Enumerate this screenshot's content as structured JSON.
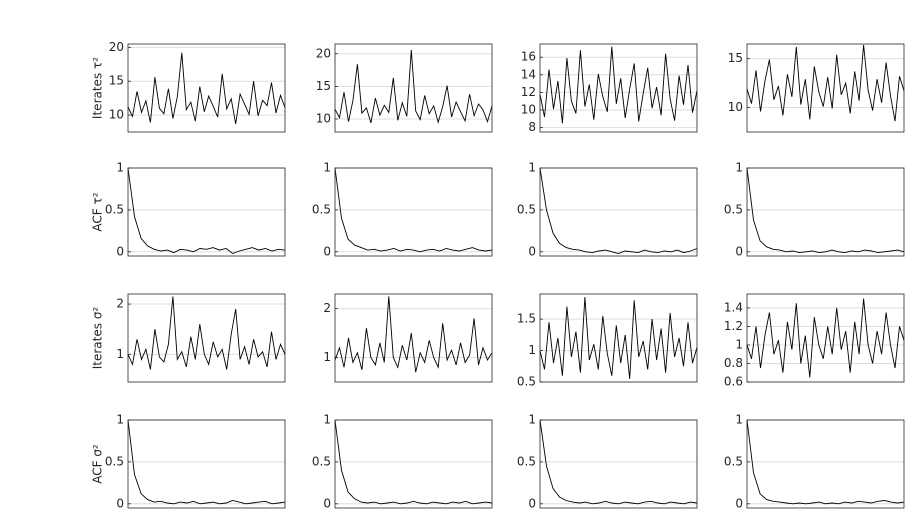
{
  "chart_data": [
    {
      "type": "line",
      "ylabel": "Iterates τ²",
      "color": "#000000",
      "grid": true,
      "ylim": [
        7.5,
        20.5
      ],
      "yticks": [
        10,
        15,
        20
      ],
      "values": [
        11.2,
        9.8,
        13.5,
        10.4,
        12.1,
        8.9,
        15.6,
        11.0,
        10.2,
        13.9,
        9.5,
        12.7,
        19.2,
        10.8,
        11.9,
        9.1,
        14.2,
        10.5,
        12.8,
        11.3,
        9.7,
        16.1,
        10.9,
        12.4,
        8.7,
        13.1,
        11.6,
        10.1,
        15.0,
        9.9,
        12.2,
        11.4,
        14.8,
        10.3,
        12.9,
        11.1
      ]
    },
    {
      "type": "line",
      "color": "#000000",
      "grid": true,
      "ylim": [
        8,
        21.5
      ],
      "yticks": [
        10,
        15,
        20
      ],
      "values": [
        11.5,
        10.2,
        14.1,
        9.6,
        12.8,
        18.4,
        10.9,
        11.7,
        9.4,
        13.2,
        10.6,
        12.1,
        11.0,
        16.3,
        9.8,
        12.5,
        10.4,
        20.6,
        11.2,
        9.9,
        13.6,
        10.8,
        12.0,
        9.5,
        11.9,
        15.1,
        10.3,
        12.6,
        11.1,
        9.7,
        13.8,
        10.5,
        12.3,
        11.4,
        9.6,
        12.0
      ]
    },
    {
      "type": "line",
      "color": "#000000",
      "grid": true,
      "ylim": [
        7.5,
        17.5
      ],
      "yticks": [
        8,
        10,
        12,
        14,
        16
      ],
      "values": [
        11.8,
        9.2,
        14.6,
        10.1,
        13.3,
        8.5,
        15.9,
        11.0,
        9.6,
        16.8,
        10.4,
        12.9,
        8.9,
        14.1,
        11.5,
        9.8,
        17.2,
        10.7,
        13.6,
        9.1,
        12.4,
        15.3,
        8.7,
        11.9,
        14.8,
        10.2,
        12.6,
        9.4,
        16.4,
        11.3,
        8.8,
        13.9,
        10.6,
        15.1,
        9.7,
        12.2
      ]
    },
    {
      "type": "line",
      "color": "#000000",
      "grid": true,
      "ylim": [
        7.5,
        16.5
      ],
      "yticks": [
        10,
        15
      ],
      "values": [
        11.9,
        10.4,
        13.8,
        9.6,
        12.7,
        14.9,
        10.8,
        12.2,
        9.2,
        13.4,
        11.1,
        16.2,
        10.3,
        12.9,
        8.8,
        14.2,
        11.6,
        10.1,
        13.1,
        9.9,
        15.4,
        11.3,
        12.5,
        9.4,
        13.7,
        10.7,
        16.4,
        11.8,
        9.7,
        12.9,
        10.5,
        14.6,
        11.2,
        8.6,
        13.2,
        11.7
      ]
    },
    {
      "type": "line",
      "ylabel": "ACF τ²",
      "color": "#000000",
      "grid": true,
      "ylim": [
        -0.05,
        1
      ],
      "yticks": [
        0,
        0.5,
        1
      ],
      "values": [
        1,
        0.42,
        0.16,
        0.07,
        0.03,
        0.01,
        0.02,
        -0.01,
        0.03,
        0.02,
        0.0,
        0.04,
        0.03,
        0.05,
        0.02,
        0.04,
        -0.02,
        0.01,
        0.03,
        0.05,
        0.02,
        0.04,
        0.01,
        0.03,
        0.02
      ]
    },
    {
      "type": "line",
      "color": "#000000",
      "grid": true,
      "ylim": [
        -0.05,
        1
      ],
      "yticks": [
        0,
        0.5,
        1
      ],
      "values": [
        1,
        0.4,
        0.15,
        0.08,
        0.05,
        0.02,
        0.03,
        0.01,
        0.02,
        0.04,
        0.01,
        0.03,
        0.02,
        0.0,
        0.02,
        0.03,
        0.01,
        0.04,
        0.02,
        0.01,
        0.03,
        0.05,
        0.02,
        0.01,
        0.02
      ]
    },
    {
      "type": "line",
      "color": "#000000",
      "grid": true,
      "ylim": [
        -0.05,
        1
      ],
      "yticks": [
        0,
        0.5,
        1
      ],
      "values": [
        1,
        0.5,
        0.22,
        0.1,
        0.05,
        0.03,
        0.02,
        0.0,
        -0.01,
        0.01,
        0.02,
        0.0,
        -0.02,
        0.01,
        0.0,
        -0.01,
        0.02,
        0.0,
        -0.01,
        0.01,
        0.0,
        0.02,
        -0.01,
        0.01,
        0.04
      ]
    },
    {
      "type": "line",
      "color": "#000000",
      "grid": true,
      "ylim": [
        -0.05,
        1
      ],
      "yticks": [
        0,
        0.5,
        1
      ],
      "values": [
        1,
        0.38,
        0.13,
        0.06,
        0.03,
        0.02,
        0.0,
        0.01,
        -0.01,
        0.0,
        0.01,
        -0.01,
        0.0,
        0.02,
        0.0,
        -0.01,
        0.01,
        0.0,
        0.02,
        0.01,
        -0.01,
        0.0,
        0.01,
        0.02,
        0.0
      ]
    },
    {
      "type": "line",
      "ylabel": "Iterates σ²",
      "color": "#000000",
      "grid": true,
      "ylim": [
        0.45,
        2.2
      ],
      "yticks": [
        1,
        2
      ],
      "values": [
        1.0,
        0.8,
        1.3,
        0.9,
        1.1,
        0.7,
        1.5,
        0.95,
        0.85,
        1.2,
        2.15,
        0.9,
        1.05,
        0.75,
        1.35,
        0.9,
        1.6,
        1.0,
        0.8,
        1.25,
        0.95,
        1.1,
        0.7,
        1.4,
        1.9,
        0.9,
        1.15,
        0.8,
        1.3,
        0.95,
        1.05,
        0.75,
        1.45,
        0.9,
        1.2,
        1.0
      ]
    },
    {
      "type": "line",
      "color": "#000000",
      "grid": true,
      "ylim": [
        0.5,
        2.3
      ],
      "yticks": [
        1,
        2
      ],
      "values": [
        0.95,
        1.2,
        0.8,
        1.4,
        0.9,
        1.1,
        0.75,
        1.6,
        1.0,
        0.85,
        1.3,
        0.9,
        2.25,
        1.0,
        0.8,
        1.25,
        0.95,
        1.5,
        0.7,
        1.1,
        0.9,
        1.35,
        1.0,
        0.8,
        1.7,
        0.95,
        1.15,
        0.85,
        1.3,
        0.9,
        1.05,
        1.8,
        0.85,
        1.2,
        0.95,
        1.1
      ]
    },
    {
      "type": "line",
      "color": "#000000",
      "grid": true,
      "ylim": [
        0.5,
        1.9
      ],
      "yticks": [
        0.5,
        1,
        1.5
      ],
      "values": [
        1.0,
        0.7,
        1.45,
        0.8,
        1.2,
        0.6,
        1.7,
        0.9,
        1.3,
        0.65,
        1.85,
        0.85,
        1.1,
        0.7,
        1.55,
        0.95,
        0.6,
        1.4,
        0.8,
        1.25,
        0.55,
        1.8,
        0.9,
        1.15,
        0.7,
        1.5,
        0.85,
        1.35,
        0.65,
        1.6,
        0.9,
        1.2,
        0.75,
        1.45,
        0.8,
        1.05
      ]
    },
    {
      "type": "line",
      "color": "#000000",
      "grid": true,
      "ylim": [
        0.6,
        1.55
      ],
      "yticks": [
        0.6,
        0.8,
        1,
        1.2,
        1.4
      ],
      "values": [
        1.0,
        0.85,
        1.2,
        0.75,
        1.1,
        1.35,
        0.9,
        1.05,
        0.7,
        1.25,
        0.95,
        1.45,
        0.8,
        1.1,
        0.65,
        1.3,
        1.0,
        0.85,
        1.2,
        0.9,
        1.4,
        0.95,
        1.15,
        0.7,
        1.25,
        0.9,
        1.5,
        1.0,
        0.8,
        1.15,
        0.9,
        1.35,
        1.0,
        0.75,
        1.2,
        1.05
      ]
    },
    {
      "type": "line",
      "ylabel": "ACF σ²",
      "color": "#000000",
      "grid": true,
      "ylim": [
        -0.05,
        1
      ],
      "yticks": [
        0,
        0.5,
        1
      ],
      "values": [
        1,
        0.35,
        0.12,
        0.05,
        0.02,
        0.03,
        0.01,
        0.0,
        0.02,
        0.01,
        0.03,
        0.0,
        0.01,
        0.02,
        0.0,
        0.01,
        0.04,
        0.02,
        0.0,
        0.01,
        0.02,
        0.03,
        0.0,
        0.01,
        0.02
      ]
    },
    {
      "type": "line",
      "color": "#000000",
      "grid": true,
      "ylim": [
        -0.05,
        1
      ],
      "yticks": [
        0,
        0.5,
        1
      ],
      "values": [
        1,
        0.4,
        0.14,
        0.06,
        0.02,
        0.01,
        0.02,
        0.0,
        0.01,
        0.02,
        0.0,
        0.01,
        0.03,
        0.01,
        0.0,
        0.02,
        0.01,
        0.0,
        0.02,
        0.01,
        0.03,
        0.0,
        0.01,
        0.02,
        0.01
      ]
    },
    {
      "type": "line",
      "color": "#000000",
      "grid": true,
      "ylim": [
        -0.05,
        1
      ],
      "yticks": [
        0,
        0.5,
        1
      ],
      "values": [
        1,
        0.45,
        0.18,
        0.08,
        0.04,
        0.02,
        0.01,
        0.02,
        0.0,
        0.01,
        0.03,
        0.01,
        0.0,
        0.02,
        0.01,
        0.0,
        0.02,
        0.03,
        0.01,
        0.0,
        0.02,
        0.01,
        0.0,
        0.02,
        0.01
      ]
    },
    {
      "type": "line",
      "color": "#000000",
      "grid": true,
      "ylim": [
        -0.05,
        1
      ],
      "yticks": [
        0,
        0.5,
        1
      ],
      "values": [
        1,
        0.37,
        0.12,
        0.05,
        0.03,
        0.02,
        0.01,
        0.0,
        0.01,
        0.0,
        0.01,
        0.02,
        0.0,
        0.01,
        0.0,
        0.02,
        0.01,
        0.03,
        0.02,
        0.01,
        0.03,
        0.04,
        0.02,
        0.01,
        0.02
      ]
    }
  ]
}
